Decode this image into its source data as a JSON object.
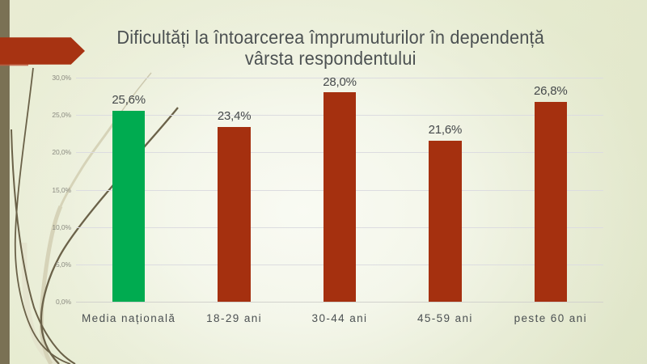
{
  "slide": {
    "title_line1": "Dificultăți la întoarcerea împrumuturilor în dependență",
    "title_line2": "vârsta respondentului"
  },
  "chart_data": {
    "type": "bar",
    "title": "Dificultăți la întoarcerea împrumuturilor în dependență vârsta respondentului",
    "categories": [
      "Media națională",
      "18-29 ani",
      "30-44 ani",
      "45-59 ani",
      "peste 60 ani"
    ],
    "values": [
      25.6,
      23.4,
      28.0,
      21.6,
      26.8
    ],
    "value_labels": [
      "25,6%",
      "23,4%",
      "28,0%",
      "21,6%",
      "26,8%"
    ],
    "bar_colors": [
      "#00ab50",
      "#a5300f",
      "#a5300f",
      "#a5300f",
      "#a5300f"
    ],
    "xlabel": "",
    "ylabel": "",
    "ylim": [
      0,
      30
    ],
    "ytick_step": 5,
    "ytick_labels": [
      "0,0%",
      "5,0%",
      "10,0%",
      "15,0%",
      "20,0%",
      "25,0%",
      "30,0%"
    ],
    "grid": true,
    "legend": false
  },
  "colors": {
    "background_center": "#f8f9f1",
    "background_edge": "#dde3c5",
    "left_stripe": "#7a7154",
    "arrow": "#a73312",
    "vine_dark": "#6a6148",
    "vine_light": "#d8d5bc",
    "title_text": "#4c5152",
    "axis_text": "#8a8a80",
    "label_text": "#45494b",
    "gridline": "#dcdce0"
  },
  "decor": {
    "left_stripe": "left-stripe",
    "arrow": "arrow-shape",
    "vines": "vine-decoration"
  }
}
